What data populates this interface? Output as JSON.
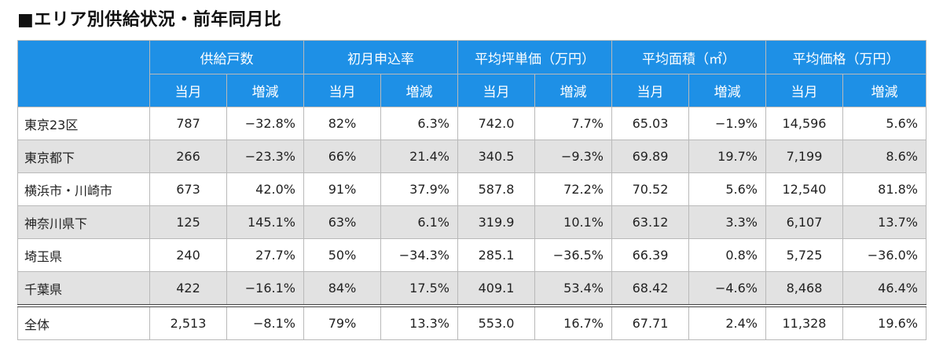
{
  "title": "■エリア別供給状況・前年同月比",
  "table": {
    "groups": [
      "供給戸数",
      "初月申込率",
      "平均坪単価（万円）",
      "平均面積（㎡）",
      "平均価格（万円）"
    ],
    "sub_current": "当月",
    "sub_change": "増減",
    "rows": [
      {
        "area": "東京23区",
        "cells": [
          "787",
          "−32.8%",
          "82%",
          "6.3%",
          "742.0",
          "7.7%",
          "65.03",
          "−1.9%",
          "14,596",
          "5.6%"
        ]
      },
      {
        "area": "東京都下",
        "cells": [
          "266",
          "−23.3%",
          "66%",
          "21.4%",
          "340.5",
          "−9.3%",
          "69.89",
          "19.7%",
          "7,199",
          "8.6%"
        ]
      },
      {
        "area": "横浜市・川崎市",
        "cells": [
          "673",
          "42.0%",
          "91%",
          "37.9%",
          "587.8",
          "72.2%",
          "70.52",
          "5.6%",
          "12,540",
          "81.8%"
        ]
      },
      {
        "area": "神奈川県下",
        "cells": [
          "125",
          "145.1%",
          "63%",
          "6.1%",
          "319.9",
          "10.1%",
          "63.12",
          "3.3%",
          "6,107",
          "13.7%"
        ]
      },
      {
        "area": "埼玉県",
        "cells": [
          "240",
          "27.7%",
          "50%",
          "−34.3%",
          "285.1",
          "−36.5%",
          "66.39",
          "0.8%",
          "5,725",
          "−36.0%"
        ]
      },
      {
        "area": "千葉県",
        "cells": [
          "422",
          "−16.1%",
          "84%",
          "17.5%",
          "409.1",
          "53.4%",
          "68.42",
          "−4.6%",
          "8,468",
          "46.4%"
        ]
      }
    ],
    "total": {
      "area": "全体",
      "cells": [
        "2,513",
        "−8.1%",
        "79%",
        "13.3%",
        "553.0",
        "16.7%",
        "67.71",
        "2.4%",
        "11,328",
        "19.6%"
      ]
    }
  }
}
